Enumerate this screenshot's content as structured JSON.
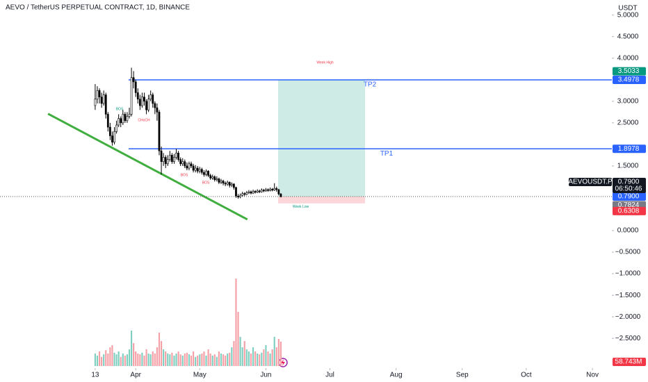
{
  "chart_data": {
    "type": "candlestick",
    "title": "AEVO / TetherUS PERPETUAL CONTRACT, 1D, BINANCE",
    "y_axis_label": "USDT",
    "x": [
      0,
      1,
      2,
      3,
      4,
      5,
      6,
      7,
      8,
      9,
      10,
      11,
      12,
      13,
      14,
      15,
      16,
      17,
      18,
      19,
      20,
      21,
      22,
      23,
      24,
      25,
      26,
      27,
      28,
      29,
      30,
      31,
      32,
      33,
      34,
      35,
      36,
      37,
      38,
      39,
      40,
      41,
      42,
      43,
      44,
      45,
      46,
      47,
      48,
      49,
      50,
      51,
      52,
      53,
      54,
      55,
      56,
      57,
      58,
      59,
      60,
      61,
      62,
      63,
      64,
      65,
      66,
      67,
      68,
      69,
      70,
      71,
      72,
      73,
      74,
      75,
      76,
      77,
      78,
      79,
      80,
      81,
      82,
      83,
      84,
      85,
      86,
      87
    ],
    "ohlc": [
      [
        2.9,
        3.4,
        2.8,
        3.05
      ],
      [
        3.05,
        3.35,
        2.95,
        3.25
      ],
      [
        3.25,
        3.3,
        2.95,
        3.1
      ],
      [
        3.1,
        3.2,
        2.85,
        2.95
      ],
      [
        2.95,
        3.25,
        2.9,
        3.15
      ],
      [
        3.15,
        3.2,
        2.6,
        2.7
      ],
      [
        2.7,
        2.75,
        2.3,
        2.4
      ],
      [
        2.4,
        2.5,
        2.1,
        2.2
      ],
      [
        2.2,
        2.3,
        1.97,
        2.05
      ],
      [
        2.05,
        2.4,
        2.0,
        2.3
      ],
      [
        2.3,
        2.55,
        2.25,
        2.45
      ],
      [
        2.45,
        2.7,
        2.4,
        2.6
      ],
      [
        2.6,
        2.65,
        2.4,
        2.5
      ],
      [
        2.5,
        2.8,
        2.45,
        2.7
      ],
      [
        2.7,
        2.75,
        2.5,
        2.55
      ],
      [
        2.55,
        2.75,
        2.5,
        2.65
      ],
      [
        2.65,
        2.85,
        2.6,
        2.7
      ],
      [
        2.7,
        3.78,
        2.65,
        3.55
      ],
      [
        3.55,
        3.7,
        3.3,
        3.45
      ],
      [
        3.45,
        3.5,
        3.1,
        3.2
      ],
      [
        3.2,
        3.3,
        2.95,
        3.05
      ],
      [
        3.05,
        3.15,
        2.8,
        2.9
      ],
      [
        2.9,
        3.2,
        2.85,
        3.1
      ],
      [
        3.1,
        3.2,
        2.9,
        3.0
      ],
      [
        3.0,
        3.05,
        2.7,
        2.8
      ],
      [
        2.8,
        3.15,
        2.75,
        3.05
      ],
      [
        3.05,
        3.25,
        3.0,
        3.15
      ],
      [
        3.15,
        3.2,
        2.85,
        2.95
      ],
      [
        2.95,
        3.0,
        2.7,
        2.85
      ],
      [
        2.85,
        2.95,
        2.55,
        2.75
      ],
      [
        2.75,
        2.8,
        1.75,
        1.85
      ],
      [
        1.85,
        1.95,
        1.3,
        1.6
      ],
      [
        1.6,
        1.8,
        1.5,
        1.7
      ],
      [
        1.7,
        1.75,
        1.45,
        1.55
      ],
      [
        1.55,
        1.75,
        1.5,
        1.65
      ],
      [
        1.65,
        1.85,
        1.6,
        1.75
      ],
      [
        1.75,
        1.8,
        1.55,
        1.6
      ],
      [
        1.6,
        1.78,
        1.55,
        1.7
      ],
      [
        1.7,
        1.9,
        1.65,
        1.8
      ],
      [
        1.8,
        1.85,
        1.6,
        1.65
      ],
      [
        1.65,
        1.7,
        1.5,
        1.55
      ],
      [
        1.55,
        1.68,
        1.5,
        1.6
      ],
      [
        1.6,
        1.65,
        1.45,
        1.5
      ],
      [
        1.5,
        1.58,
        1.4,
        1.45
      ],
      [
        1.45,
        1.6,
        1.4,
        1.55
      ],
      [
        1.55,
        1.6,
        1.45,
        1.5
      ],
      [
        1.5,
        1.55,
        1.35,
        1.4
      ],
      [
        1.4,
        1.52,
        1.35,
        1.45
      ],
      [
        1.45,
        1.5,
        1.33,
        1.38
      ],
      [
        1.38,
        1.48,
        1.33,
        1.42
      ],
      [
        1.42,
        1.46,
        1.3,
        1.35
      ],
      [
        1.35,
        1.4,
        1.25,
        1.3
      ],
      [
        1.3,
        1.42,
        1.26,
        1.38
      ],
      [
        1.38,
        1.4,
        1.24,
        1.28
      ],
      [
        1.28,
        1.32,
        1.18,
        1.22
      ],
      [
        1.22,
        1.3,
        1.18,
        1.25
      ],
      [
        1.25,
        1.28,
        1.14,
        1.18
      ],
      [
        1.18,
        1.26,
        1.14,
        1.2
      ],
      [
        1.2,
        1.23,
        1.08,
        1.12
      ],
      [
        1.12,
        1.2,
        1.08,
        1.15
      ],
      [
        1.15,
        1.18,
        1.05,
        1.1
      ],
      [
        1.1,
        1.14,
        1.03,
        1.08
      ],
      [
        1.08,
        1.16,
        1.04,
        1.12
      ],
      [
        1.12,
        1.14,
        1.0,
        1.05
      ],
      [
        1.05,
        1.12,
        1.01,
        1.08
      ],
      [
        1.08,
        1.1,
        0.95,
        1.0
      ],
      [
        1.0,
        1.02,
        0.76,
        0.8
      ],
      [
        0.8,
        0.85,
        0.74,
        0.78
      ],
      [
        0.78,
        0.86,
        0.75,
        0.82
      ],
      [
        0.82,
        0.9,
        0.79,
        0.86
      ],
      [
        0.86,
        0.89,
        0.8,
        0.84
      ],
      [
        0.84,
        0.92,
        0.82,
        0.88
      ],
      [
        0.88,
        0.94,
        0.85,
        0.9
      ],
      [
        0.9,
        0.93,
        0.84,
        0.87
      ],
      [
        0.87,
        0.95,
        0.85,
        0.91
      ],
      [
        0.91,
        0.94,
        0.86,
        0.89
      ],
      [
        0.89,
        0.96,
        0.87,
        0.92
      ],
      [
        0.92,
        0.95,
        0.87,
        0.9
      ],
      [
        0.9,
        0.98,
        0.88,
        0.94
      ],
      [
        0.94,
        0.97,
        0.89,
        0.92
      ],
      [
        0.92,
        0.99,
        0.9,
        0.95
      ],
      [
        0.95,
        0.98,
        0.9,
        0.93
      ],
      [
        0.93,
        1.0,
        0.91,
        0.96
      ],
      [
        0.96,
        0.99,
        0.91,
        0.94
      ],
      [
        0.94,
        1.1,
        0.92,
        0.98
      ],
      [
        0.98,
        1.02,
        0.9,
        0.95
      ],
      [
        0.95,
        0.97,
        0.82,
        0.85
      ],
      [
        0.85,
        0.87,
        0.77,
        0.79
      ]
    ],
    "volume": {
      "values": [
        30000000.0,
        25000000.0,
        35000000.0,
        22000000.0,
        28000000.0,
        38000000.0,
        30000000.0,
        45000000.0,
        50000000.0,
        32000000.0,
        28000000.0,
        35000000.0,
        22000000.0,
        30000000.0,
        25000000.0,
        28000000.0,
        40000000.0,
        85000000.0,
        55000000.0,
        35000000.0,
        30000000.0,
        28000000.0,
        32000000.0,
        25000000.0,
        40000000.0,
        30000000.0,
        28000000.0,
        35000000.0,
        30000000.0,
        45000000.0,
        80000000.0,
        60000000.0,
        40000000.0,
        35000000.0,
        30000000.0,
        28000000.0,
        32000000.0,
        25000000.0,
        30000000.0,
        35000000.0,
        28000000.0,
        25000000.0,
        30000000.0,
        32000000.0,
        28000000.0,
        25000000.0,
        35000000.0,
        22000000.0,
        25000000.0,
        28000000.0,
        30000000.0,
        35000000.0,
        25000000.0,
        40000000.0,
        30000000.0,
        25000000.0,
        28000000.0,
        22000000.0,
        35000000.0,
        30000000.0,
        28000000.0,
        25000000.0,
        30000000.0,
        32000000.0,
        45000000.0,
        60000000.0,
        210000000.0,
        130000000.0,
        70000000.0,
        45000000.0,
        60000000.0,
        40000000.0,
        35000000.0,
        30000000.0,
        45000000.0,
        35000000.0,
        30000000.0,
        28000000.0,
        32000000.0,
        40000000.0,
        50000000.0,
        35000000.0,
        30000000.0,
        40000000.0,
        70000000.0,
        45000000.0,
        65000000.0,
        58743000.0
      ],
      "last_label": "58.743M",
      "vlim": [
        0,
        350000000.0
      ],
      "up_color": "#7fcfc0",
      "down_color": "#f4a0a6"
    },
    "xlim": [
      -44.6,
      242.1
    ],
    "xticks": [
      {
        "value": 0,
        "label": "13"
      },
      {
        "value": 19,
        "label": "Apr"
      },
      {
        "value": 49,
        "label": "May"
      },
      {
        "value": 80,
        "label": "Jun"
      },
      {
        "value": 110,
        "label": "Jul"
      },
      {
        "value": 141,
        "label": "Aug"
      },
      {
        "value": 172,
        "label": "Sep"
      },
      {
        "value": 202,
        "label": "Oct"
      },
      {
        "value": 233,
        "label": "Nov"
      }
    ],
    "ylim": [
      -3.19,
      5.35
    ],
    "yticks": [
      {
        "value": 5,
        "label": "5.0000"
      },
      {
        "value": 4.5,
        "label": "4.5000"
      },
      {
        "value": 4,
        "label": "4.0000"
      },
      {
        "value": 3,
        "label": "3.0000"
      },
      {
        "value": 2.5,
        "label": "2.5000"
      },
      {
        "value": 1.5,
        "label": "1.5000"
      },
      {
        "value": 0,
        "label": "0.0000"
      },
      {
        "value": -0.5,
        "label": "−0.5000"
      },
      {
        "value": -1,
        "label": "−1.0000"
      },
      {
        "value": -1.5,
        "label": "−1.5000"
      },
      {
        "value": -2,
        "label": "−2.0000"
      },
      {
        "value": -2.5,
        "label": "−2.5000"
      }
    ],
    "grid": false,
    "levels": [
      {
        "name": "TP1",
        "value": 1.8978
      },
      {
        "name": "TP2",
        "value": 3.4978
      }
    ],
    "level_color": "#2962ff",
    "position": {
      "entry": 0.79,
      "target": 3.4978,
      "stop": 0.6308,
      "high_label": "Week High",
      "low_label": "Week Low"
    },
    "trendline": {
      "x": [
        -22.1,
        71.3
      ],
      "y": [
        2.71,
        0.26
      ],
      "color": "#3fae3f"
    },
    "structure_labels": [
      "BOS",
      "CHoCH",
      "BOS",
      "BOS"
    ],
    "symbol_tag": {
      "symbol": "AEVOUSDT.P",
      "price": {
        "value": 0.79,
        "label": "0.7900"
      },
      "countdown": "06:50:46"
    },
    "price_labels": [
      {
        "value": 3.5033,
        "label": "3.5033",
        "color": "#089981"
      },
      {
        "value": 3.4978,
        "label": "3.4978",
        "color": "#2962ff"
      },
      {
        "value": 1.8978,
        "label": "1.8978",
        "color": "#2962ff"
      },
      {
        "value": 0.79,
        "label": "0.7900",
        "color": "#2962ff"
      },
      {
        "value": 0.7824,
        "label": "0.7824",
        "color": "#787b86"
      },
      {
        "value": 0.6308,
        "label": "0.6308",
        "color": "#f23645"
      }
    ]
  }
}
